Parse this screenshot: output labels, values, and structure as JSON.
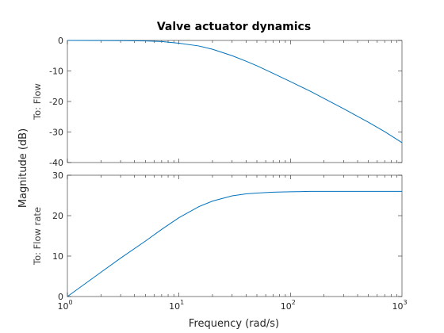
{
  "chart_data": {
    "type": "line",
    "title": "Valve actuator dynamics",
    "xlabel": "Frequency  (rad/s)",
    "ylabel": "Magnitude (dB)",
    "x_scale": "log",
    "xlim": [
      1,
      1000
    ],
    "x_ticks": [
      {
        "base": "10",
        "exp": "0",
        "value": 1
      },
      {
        "base": "10",
        "exp": "1",
        "value": 10
      },
      {
        "base": "10",
        "exp": "2",
        "value": 100
      },
      {
        "base": "10",
        "exp": "3",
        "value": 1000
      }
    ],
    "color": "#0072BD",
    "panels": [
      {
        "label": "To: Flow",
        "ylim": [
          -40,
          0
        ],
        "y_ticks": [
          "0",
          "-10",
          "-20",
          "-30",
          "-40"
        ],
        "y_tick_values": [
          0,
          -10,
          -20,
          -30,
          -40
        ],
        "series": [
          {
            "x": [
              1,
              2,
              3,
              5,
              7,
              10,
              15,
              20,
              30,
              40,
              50,
              70,
              100,
              150,
              200,
              300,
              500,
              700,
              1000
            ],
            "values": [
              0,
              -0.02,
              -0.05,
              -0.15,
              -0.35,
              -0.9,
              -1.8,
              -2.9,
              -5.0,
              -6.8,
              -8.3,
              -10.8,
              -13.5,
              -16.6,
              -19.0,
              -22.4,
              -26.8,
              -29.9,
              -33.5
            ]
          }
        ]
      },
      {
        "label": "To: Flow rate",
        "ylim": [
          0,
          30
        ],
        "y_ticks": [
          "0",
          "10",
          "20",
          "30"
        ],
        "y_tick_values": [
          0,
          10,
          20,
          30
        ],
        "series": [
          {
            "x": [
              1,
              2,
              3,
              5,
              7,
              10,
              15,
              20,
              30,
              40,
              50,
              70,
              100,
              150,
              200,
              300,
              500,
              700,
              1000
            ],
            "values": [
              0,
              6.0,
              9.5,
              13.7,
              16.6,
              19.5,
              22.2,
              23.6,
              24.9,
              25.4,
              25.6,
              25.8,
              25.9,
              26.0,
              26.0,
              26.0,
              26.0,
              26.0,
              26.0
            ]
          }
        ]
      }
    ]
  }
}
